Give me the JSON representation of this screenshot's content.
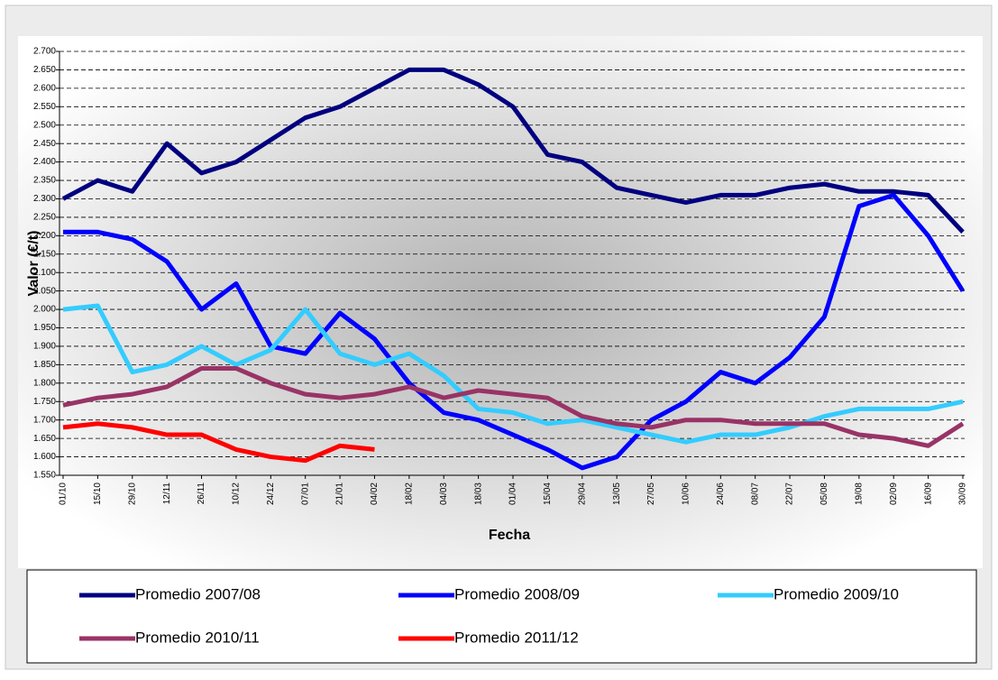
{
  "chart_data": {
    "type": "line",
    "x_label": "Fecha",
    "y_label": "Valor (€/t)",
    "categories": [
      "01/10",
      "15/10",
      "29/10",
      "12/11",
      "26/11",
      "10/12",
      "24/12",
      "07/01",
      "21/01",
      "04/02",
      "18/02",
      "04/03",
      "18/03",
      "01/04",
      "15/04",
      "29/04",
      "13/05",
      "27/05",
      "10/06",
      "24/06",
      "08/07",
      "22/07",
      "05/08",
      "19/08",
      "02/09",
      "16/09",
      "30/09"
    ],
    "series": [
      {
        "name": "Promedio 2007/08",
        "color": "#000080",
        "values": [
          2300,
          2350,
          2320,
          2450,
          2370,
          2400,
          2460,
          2520,
          2550,
          2600,
          2650,
          2650,
          2610,
          2550,
          2420,
          2400,
          2330,
          2310,
          2290,
          2310,
          2310,
          2330,
          2340,
          2320,
          2320,
          2310,
          2210
        ]
      },
      {
        "name": "Promedio 2008/09",
        "color": "#0000ff",
        "values": [
          2210,
          2210,
          2190,
          2130,
          2000,
          2070,
          1900,
          1880,
          1990,
          1920,
          1800,
          1720,
          1700,
          1660,
          1620,
          1570,
          1600,
          1700,
          1750,
          1830,
          1800,
          1870,
          1980,
          2280,
          2310,
          2200,
          2050
        ]
      },
      {
        "name": "Promedio 2009/10",
        "color": "#33ccff",
        "values": [
          2000,
          2010,
          1830,
          1850,
          1900,
          1850,
          1890,
          2000,
          1880,
          1850,
          1880,
          1820,
          1730,
          1720,
          1690,
          1700,
          1680,
          1660,
          1640,
          1660,
          1660,
          1680,
          1710,
          1730,
          1730,
          1730,
          1750
        ]
      },
      {
        "name": "Promedio 2010/11",
        "color": "#993366",
        "values": [
          1740,
          1760,
          1770,
          1790,
          1840,
          1840,
          1800,
          1770,
          1760,
          1770,
          1790,
          1760,
          1780,
          1770,
          1760,
          1710,
          1690,
          1680,
          1700,
          1700,
          1690,
          1690,
          1690,
          1660,
          1650,
          1630,
          1690
        ]
      },
      {
        "name": "Promedio 2011/12",
        "color": "#ff0000",
        "values": [
          1680,
          1690,
          1680,
          1660,
          1660,
          1620,
          1600,
          1590,
          1630,
          1620,
          null,
          null,
          null,
          null,
          null,
          null,
          null,
          null,
          null,
          null,
          null,
          null,
          null,
          null,
          null,
          null,
          null
        ]
      }
    ],
    "ylim": [
      1550,
      2700
    ],
    "yticks": [
      {
        "value": 1550,
        "label": "1.550"
      },
      {
        "value": 1600,
        "label": "1.600"
      },
      {
        "value": 1650,
        "label": "1.650"
      },
      {
        "value": 1700,
        "label": "1.700"
      },
      {
        "value": 1750,
        "label": "1.750"
      },
      {
        "value": 1800,
        "label": "1.800"
      },
      {
        "value": 1850,
        "label": "1.850"
      },
      {
        "value": 1900,
        "label": "1.900"
      },
      {
        "value": 1950,
        "label": "1.950"
      },
      {
        "value": 2000,
        "label": "2.000"
      },
      {
        "value": 2050,
        "label": "2.050"
      },
      {
        "value": 2100,
        "label": "2.100"
      },
      {
        "value": 2150,
        "label": "2.150"
      },
      {
        "value": 2200,
        "label": "2.200"
      },
      {
        "value": 2250,
        "label": "2.250"
      },
      {
        "value": 2300,
        "label": "2.300"
      },
      {
        "value": 2350,
        "label": "2.350"
      },
      {
        "value": 2400,
        "label": "2.400"
      },
      {
        "value": 2450,
        "label": "2.450"
      },
      {
        "value": 2500,
        "label": "2.500"
      },
      {
        "value": 2550,
        "label": "2.550"
      },
      {
        "value": 2600,
        "label": "2.600"
      },
      {
        "value": 2650,
        "label": "2.650"
      },
      {
        "value": 2700,
        "label": "2.700"
      }
    ],
    "grid": true,
    "legend": "bottom"
  }
}
